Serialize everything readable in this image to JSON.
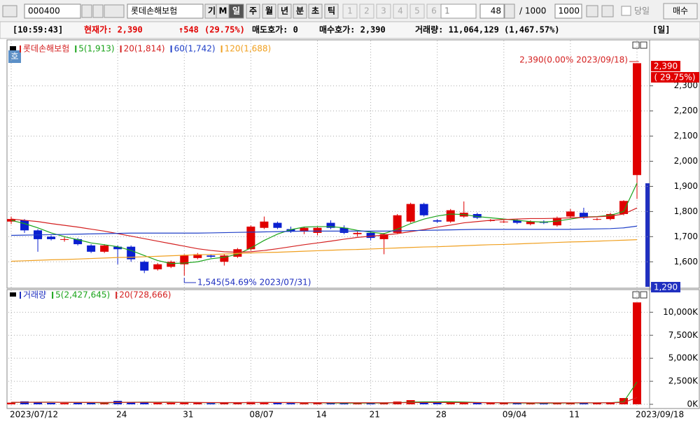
{
  "toolbar": {
    "code": "000400",
    "name": "롯데손해보험",
    "buttons": [
      "기",
      "M",
      "일",
      "주",
      "월",
      "년",
      "분",
      "초",
      "틱"
    ],
    "numbers": [
      "1",
      "2",
      "3",
      "4",
      "5",
      "6"
    ],
    "number_box": "1",
    "count": "48",
    "total": "/ 1000",
    "total_box": "1000",
    "today": "당일",
    "buy": "매수"
  },
  "info": {
    "time": "[10:59:43]",
    "current": "현재가: 2,390",
    "change": "↑548",
    "rate": "(29.75%)",
    "ask": "매도호가: 0",
    "bid": "매수호가: 2,390",
    "volume": "거래량: 11,064,129 (1,467.57%)",
    "period": "[일]"
  },
  "quote_tag": "호",
  "chart_data": [
    {
      "type": "candlestick",
      "title": "롯데손해보험",
      "up_color": "#e00000",
      "down_color": "#0a1fd0",
      "grid": true,
      "open": [
        1760,
        1765,
        1725,
        1700,
        1690,
        1690,
        1665,
        1640,
        1660,
        1660,
        1600,
        1570,
        1580,
        1590,
        1615,
        1625,
        1600,
        1620,
        1650,
        1735,
        1755,
        1730,
        1720,
        1715,
        1755,
        1735,
        1710,
        1715,
        1690,
        1715,
        1760,
        1830,
        1765,
        1760,
        1780,
        1790,
        1765,
        1760,
        1765,
        1750,
        1760,
        1745,
        1780,
        1795,
        1770,
        1770,
        1790,
        1945
      ],
      "high": [
        1780,
        1770,
        1730,
        1705,
        1700,
        1695,
        1670,
        1670,
        1665,
        1665,
        1605,
        1595,
        1605,
        1630,
        1635,
        1630,
        1630,
        1655,
        1745,
        1780,
        1760,
        1740,
        1740,
        1740,
        1765,
        1745,
        1720,
        1720,
        1715,
        1790,
        1835,
        1835,
        1770,
        1810,
        1840,
        1795,
        1770,
        1765,
        1770,
        1765,
        1765,
        1780,
        1810,
        1815,
        1775,
        1795,
        1845,
        2390
      ],
      "low": [
        1750,
        1715,
        1640,
        1685,
        1680,
        1665,
        1635,
        1635,
        1590,
        1600,
        1555,
        1565,
        1575,
        1545,
        1610,
        1615,
        1585,
        1615,
        1645,
        1730,
        1730,
        1715,
        1710,
        1705,
        1730,
        1710,
        1700,
        1685,
        1630,
        1710,
        1755,
        1780,
        1755,
        1755,
        1775,
        1770,
        1760,
        1755,
        1750,
        1745,
        1750,
        1740,
        1775,
        1770,
        1765,
        1765,
        1785,
        1850
      ],
      "close": [
        1770,
        1725,
        1690,
        1690,
        1690,
        1670,
        1640,
        1665,
        1650,
        1610,
        1565,
        1590,
        1600,
        1625,
        1630,
        1620,
        1625,
        1650,
        1740,
        1760,
        1735,
        1720,
        1735,
        1735,
        1735,
        1715,
        1715,
        1695,
        1710,
        1785,
        1830,
        1785,
        1760,
        1805,
        1795,
        1775,
        1765,
        1760,
        1755,
        1760,
        1755,
        1775,
        1800,
        1775,
        1770,
        1790,
        1842,
        2390
      ],
      "ylim": [
        1520,
        2480
      ],
      "yticks": [
        {
          "value": 1600,
          "label": "1,600"
        },
        {
          "value": 1700,
          "label": "1,700"
        },
        {
          "value": 1800,
          "label": "1,800"
        },
        {
          "value": 1900,
          "label": "1,900"
        },
        {
          "value": 2000,
          "label": "2,000"
        },
        {
          "value": 2100,
          "label": "2,100"
        },
        {
          "value": 2200,
          "label": "2,200"
        },
        {
          "value": 2300,
          "label": "2,300"
        }
      ],
      "series": [
        {
          "name": "5(1,913)",
          "color": "#1aa31a",
          "values": [
            1765,
            1752,
            1735,
            1715,
            1700,
            1688,
            1675,
            1668,
            1660,
            1645,
            1625,
            1605,
            1593,
            1595,
            1600,
            1612,
            1618,
            1630,
            1655,
            1685,
            1710,
            1728,
            1738,
            1740,
            1740,
            1735,
            1725,
            1718,
            1712,
            1730,
            1752,
            1770,
            1782,
            1790,
            1788,
            1780,
            1775,
            1770,
            1765,
            1760,
            1758,
            1762,
            1770,
            1778,
            1780,
            1785,
            1800,
            1913
          ]
        },
        {
          "name": "20(1,814)",
          "color": "#d42020",
          "values": [
            1770,
            1765,
            1760,
            1752,
            1745,
            1738,
            1730,
            1722,
            1712,
            1702,
            1692,
            1682,
            1672,
            1662,
            1652,
            1645,
            1640,
            1638,
            1640,
            1645,
            1652,
            1660,
            1668,
            1675,
            1682,
            1690,
            1697,
            1702,
            1706,
            1712,
            1720,
            1728,
            1738,
            1746,
            1755,
            1760,
            1765,
            1768,
            1770,
            1772,
            1772,
            1773,
            1775,
            1777,
            1779,
            1782,
            1790,
            1814
          ]
        },
        {
          "name": "60(1,742)",
          "color": "#2040c8",
          "values": [
            1705,
            1706,
            1707,
            1708,
            1709,
            1710,
            1711,
            1712,
            1713,
            1714,
            1714,
            1714,
            1714,
            1714,
            1714,
            1715,
            1716,
            1717,
            1718,
            1719,
            1720,
            1721,
            1722,
            1722,
            1722,
            1722,
            1722,
            1722,
            1722,
            1723,
            1724,
            1725,
            1726,
            1727,
            1728,
            1729,
            1729,
            1729,
            1729,
            1729,
            1729,
            1729,
            1729,
            1730,
            1731,
            1732,
            1735,
            1742
          ]
        },
        {
          "name": "120(1,688)",
          "color": "#f0a020",
          "values": [
            1602,
            1604,
            1606,
            1608,
            1609,
            1611,
            1613,
            1615,
            1617,
            1618,
            1620,
            1622,
            1624,
            1626,
            1628,
            1629,
            1631,
            1633,
            1635,
            1637,
            1638,
            1640,
            1642,
            1644,
            1646,
            1648,
            1649,
            1651,
            1653,
            1655,
            1657,
            1659,
            1660,
            1662,
            1664,
            1666,
            1668,
            1669,
            1671,
            1673,
            1675,
            1677,
            1679,
            1680,
            1682,
            1684,
            1686,
            1688
          ]
        }
      ],
      "annotations": [
        "2,390(0.00% 2023/09/18)",
        "1,545(54.69% 2023/07/31)"
      ],
      "price_tags": [
        "2,390",
        "( 29.75%)",
        "1,290"
      ]
    },
    {
      "type": "bar",
      "title": "거래량",
      "grid": true,
      "categories": [
        "2023/07/12",
        null,
        null,
        null,
        null,
        null,
        null,
        null,
        "24",
        null,
        null,
        null,
        null,
        "31",
        null,
        null,
        null,
        null,
        "08/07",
        null,
        null,
        null,
        null,
        "14",
        null,
        null,
        null,
        "21",
        null,
        null,
        null,
        null,
        "28",
        null,
        null,
        null,
        null,
        "09/04",
        null,
        null,
        null,
        null,
        "11",
        null,
        null,
        null,
        null,
        "2023/09/18"
      ],
      "values": [
        180,
        320,
        260,
        150,
        140,
        170,
        190,
        120,
        380,
        260,
        230,
        160,
        150,
        250,
        170,
        130,
        160,
        180,
        260,
        230,
        150,
        140,
        130,
        140,
        120,
        130,
        110,
        170,
        160,
        300,
        450,
        240,
        170,
        220,
        180,
        160,
        140,
        130,
        120,
        110,
        130,
        150,
        190,
        160,
        150,
        230,
        680,
        11064
      ],
      "ylim": [
        0,
        12000
      ],
      "yticks": [
        {
          "value": 0,
          "label": "0K"
        },
        {
          "value": 2500,
          "label": "2,500K"
        },
        {
          "value": 5000,
          "label": "5,000K"
        },
        {
          "value": 7500,
          "label": "7,500K"
        },
        {
          "value": 10000,
          "label": "10,000K"
        }
      ],
      "series": [
        {
          "name": "5(2,427,645)",
          "color": "#1aa31a",
          "values": [
            200,
            220,
            230,
            240,
            210,
            205,
            185,
            155,
            200,
            225,
            235,
            230,
            235,
            210,
            190,
            175,
            175,
            175,
            185,
            200,
            195,
            190,
            180,
            165,
            140,
            130,
            130,
            135,
            140,
            175,
            240,
            265,
            270,
            275,
            250,
            200,
            180,
            155,
            140,
            130,
            125,
            130,
            140,
            150,
            155,
            175,
            270,
            2428
          ]
        },
        {
          "name": "20(728,666)",
          "color": "#d42020",
          "values": [
            220,
            225,
            225,
            225,
            220,
            215,
            210,
            205,
            210,
            215,
            215,
            210,
            210,
            205,
            200,
            195,
            190,
            190,
            195,
            200,
            195,
            190,
            185,
            180,
            175,
            175,
            170,
            170,
            170,
            175,
            190,
            195,
            195,
            195,
            190,
            185,
            180,
            175,
            170,
            165,
            160,
            160,
            165,
            165,
            165,
            170,
            200,
            729
          ]
        }
      ]
    }
  ]
}
